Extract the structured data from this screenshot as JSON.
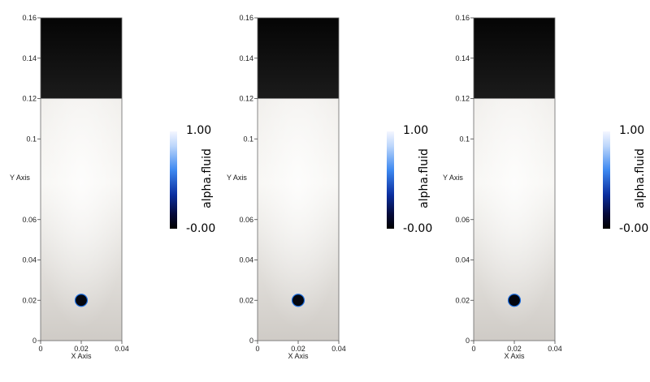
{
  "chart_data": [
    {
      "type": "heatmap",
      "title": "",
      "xlabel": "X Axis",
      "ylabel": "Y Axis",
      "xlim": [
        0,
        0.04
      ],
      "ylim": [
        0,
        0.16
      ],
      "x_ticks": [
        "0",
        "0.02",
        "0.04"
      ],
      "y_ticks": [
        "0",
        "0.02",
        "0.04",
        "0.06",
        "0.1",
        "0.12",
        "0.14",
        "0.16"
      ],
      "field": "alpha.fluid",
      "colorbar": {
        "max_label": "1.00",
        "min_label": "-0.00",
        "title": "alpha.fluid"
      },
      "fluid_interface_y": 0.12,
      "bubble": {
        "x": 0.02,
        "y": 0.02,
        "radius": 0.003
      },
      "colors": {
        "liquid": "#efedeb",
        "gas": "#050505",
        "bubble_edge": "#1f6fe0"
      }
    },
    {
      "type": "heatmap",
      "title": "",
      "xlabel": "X Axis",
      "ylabel": "Y Axis",
      "xlim": [
        0,
        0.04
      ],
      "ylim": [
        0,
        0.16
      ],
      "x_ticks": [
        "0",
        "0.02",
        "0.04"
      ],
      "y_ticks": [
        "0",
        "0.02",
        "0.04",
        "0.06",
        "0.1",
        "0.12",
        "0.14",
        "0.16"
      ],
      "field": "alpha.fluid",
      "colorbar": {
        "max_label": "1.00",
        "min_label": "-0.00",
        "title": "alpha.fluid"
      },
      "fluid_interface_y": 0.12,
      "bubble": {
        "x": 0.02,
        "y": 0.02,
        "radius": 0.003
      },
      "colors": {
        "liquid": "#efedeb",
        "gas": "#050505",
        "bubble_edge": "#1f6fe0"
      }
    },
    {
      "type": "heatmap",
      "title": "",
      "xlabel": "X Axis",
      "ylabel": "Y Axis",
      "xlim": [
        0,
        0.04
      ],
      "ylim": [
        0,
        0.16
      ],
      "x_ticks": [
        "0",
        "0.02",
        "0.04"
      ],
      "y_ticks": [
        "0",
        "0.02",
        "0.04",
        "0.06",
        "0.1",
        "0.12",
        "0.14",
        "0.16"
      ],
      "field": "alpha.fluid",
      "colorbar": {
        "max_label": "1.00",
        "min_label": "-0.00",
        "title": "alpha.fluid"
      },
      "fluid_interface_y": 0.12,
      "bubble": {
        "x": 0.02,
        "y": 0.02,
        "radius": 0.003
      },
      "colors": {
        "liquid": "#efedeb",
        "gas": "#050505",
        "bubble_edge": "#1f6fe0"
      }
    }
  ]
}
